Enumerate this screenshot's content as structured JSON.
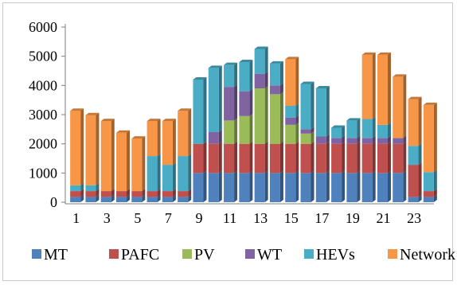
{
  "chart_data": {
    "type": "bar",
    "stacked": true,
    "style": "3d-stacked-column",
    "title": "",
    "xlabel": "",
    "ylabel": "",
    "ylim": [
      0,
      6000
    ],
    "yticks": [
      0,
      1000,
      2000,
      3000,
      4000,
      5000,
      6000
    ],
    "ytick_labels": [
      "0",
      "1000",
      "2000",
      "3000",
      "4000",
      "5000",
      "6000"
    ],
    "categories": [
      "1",
      "2",
      "3",
      "4",
      "5",
      "6",
      "7",
      "8",
      "9",
      "10",
      "11",
      "12",
      "13",
      "14",
      "15",
      "16",
      "17",
      "18",
      "19",
      "20",
      "21",
      "22",
      "23",
      "24"
    ],
    "xtick_labels": [
      "1",
      "3",
      "5",
      "7",
      "9",
      "11",
      "13",
      "15",
      "17",
      "19",
      "21",
      "23"
    ],
    "grid": false,
    "legend_position": "bottom",
    "series": [
      {
        "name": "MT",
        "color": "#4F81BD",
        "values": [
          180,
          180,
          180,
          180,
          180,
          180,
          180,
          180,
          1000,
          1000,
          1000,
          1000,
          1000,
          1000,
          1000,
          1000,
          1000,
          1000,
          1000,
          1000,
          1000,
          1000,
          180,
          180
        ]
      },
      {
        "name": "PAFC",
        "color": "#C0504D",
        "values": [
          200,
          200,
          200,
          200,
          200,
          200,
          200,
          200,
          1000,
          1000,
          1000,
          1000,
          1000,
          1000,
          1000,
          1000,
          1000,
          1000,
          1000,
          1000,
          1000,
          1000,
          1100,
          200
        ]
      },
      {
        "name": "PV",
        "color": "#9BBB59",
        "values": [
          0,
          0,
          0,
          0,
          0,
          0,
          0,
          0,
          0,
          0,
          800,
          950,
          1900,
          1700,
          650,
          350,
          0,
          0,
          0,
          0,
          0,
          0,
          0,
          0
        ]
      },
      {
        "name": "WT",
        "color": "#8064A2",
        "values": [
          0,
          0,
          0,
          0,
          0,
          0,
          0,
          0,
          0,
          400,
          1150,
          850,
          500,
          300,
          250,
          150,
          250,
          200,
          200,
          200,
          200,
          200,
          0,
          0
        ]
      },
      {
        "name": "HEVs",
        "color": "#4BACC6",
        "values": [
          200,
          200,
          0,
          0,
          0,
          1200,
          900,
          1200,
          2200,
          2200,
          750,
          1000,
          850,
          750,
          400,
          1550,
          1650,
          350,
          600,
          650,
          450,
          0,
          650,
          650
        ]
      },
      {
        "name": "Network",
        "color": "#F79646",
        "values": [
          2550,
          2400,
          2400,
          2000,
          1800,
          1200,
          1500,
          1550,
          0,
          0,
          0,
          0,
          0,
          0,
          1600,
          0,
          0,
          0,
          0,
          2200,
          2400,
          2100,
          1600,
          2300
        ]
      }
    ]
  }
}
